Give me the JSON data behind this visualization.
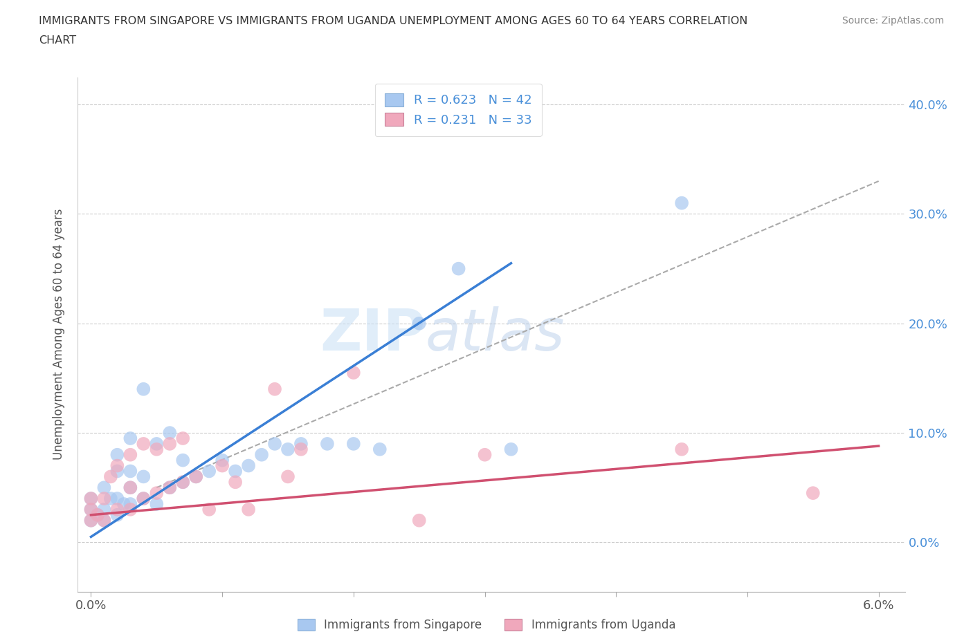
{
  "title_line1": "IMMIGRANTS FROM SINGAPORE VS IMMIGRANTS FROM UGANDA UNEMPLOYMENT AMONG AGES 60 TO 64 YEARS CORRELATION",
  "title_line2": "CHART",
  "source": "Source: ZipAtlas.com",
  "ylabel": "Unemployment Among Ages 60 to 64 years",
  "xlim": [
    -0.001,
    0.062
  ],
  "ylim": [
    -0.045,
    0.425
  ],
  "y_ticks": [
    0.0,
    0.1,
    0.2,
    0.3,
    0.4
  ],
  "x_tick_positions": [
    0.0,
    0.01,
    0.02,
    0.03,
    0.04,
    0.05,
    0.06
  ],
  "singapore_color": "#a8c8f0",
  "uganda_color": "#f0a8bc",
  "singapore_R": 0.623,
  "singapore_N": 42,
  "uganda_R": 0.231,
  "uganda_N": 33,
  "watermark_zip": "ZIP",
  "watermark_atlas": "atlas",
  "legend_singapore": "Immigrants from Singapore",
  "legend_uganda": "Immigrants from Uganda",
  "singapore_x": [
    0.0,
    0.0,
    0.0,
    0.0005,
    0.001,
    0.001,
    0.001,
    0.0015,
    0.002,
    0.002,
    0.002,
    0.002,
    0.0025,
    0.003,
    0.003,
    0.003,
    0.003,
    0.004,
    0.004,
    0.004,
    0.005,
    0.005,
    0.006,
    0.006,
    0.007,
    0.007,
    0.008,
    0.009,
    0.01,
    0.011,
    0.012,
    0.013,
    0.014,
    0.015,
    0.016,
    0.018,
    0.02,
    0.022,
    0.025,
    0.028,
    0.032,
    0.045
  ],
  "singapore_y": [
    0.02,
    0.03,
    0.04,
    0.025,
    0.02,
    0.03,
    0.05,
    0.04,
    0.025,
    0.04,
    0.065,
    0.08,
    0.035,
    0.05,
    0.065,
    0.095,
    0.035,
    0.04,
    0.06,
    0.14,
    0.035,
    0.09,
    0.05,
    0.1,
    0.055,
    0.075,
    0.06,
    0.065,
    0.075,
    0.065,
    0.07,
    0.08,
    0.09,
    0.085,
    0.09,
    0.09,
    0.09,
    0.085,
    0.2,
    0.25,
    0.085,
    0.31
  ],
  "uganda_x": [
    0.0,
    0.0,
    0.0,
    0.0005,
    0.001,
    0.001,
    0.0015,
    0.002,
    0.002,
    0.003,
    0.003,
    0.003,
    0.004,
    0.004,
    0.005,
    0.005,
    0.006,
    0.006,
    0.007,
    0.007,
    0.008,
    0.009,
    0.01,
    0.011,
    0.012,
    0.014,
    0.015,
    0.016,
    0.02,
    0.025,
    0.03,
    0.045,
    0.055
  ],
  "uganda_y": [
    0.02,
    0.03,
    0.04,
    0.025,
    0.02,
    0.04,
    0.06,
    0.03,
    0.07,
    0.03,
    0.05,
    0.08,
    0.04,
    0.09,
    0.045,
    0.085,
    0.05,
    0.09,
    0.055,
    0.095,
    0.06,
    0.03,
    0.07,
    0.055,
    0.03,
    0.14,
    0.06,
    0.085,
    0.155,
    0.02,
    0.08,
    0.085,
    0.045
  ],
  "singapore_trend_x": [
    0.0,
    0.032
  ],
  "singapore_trend_y": [
    0.005,
    0.255
  ],
  "uganda_trend_x": [
    0.0,
    0.06
  ],
  "uganda_trend_y": [
    0.025,
    0.088
  ],
  "dashed_trend_x": [
    0.005,
    0.06
  ],
  "dashed_trend_y": [
    0.05,
    0.33
  ],
  "trend_line_color_sg": "#3a7fd5",
  "trend_line_color_ug": "#d05070",
  "dashed_line_color": "#aaaaaa",
  "grid_color": "#cccccc",
  "right_tick_color": "#4a90d9",
  "background_color": "#ffffff"
}
